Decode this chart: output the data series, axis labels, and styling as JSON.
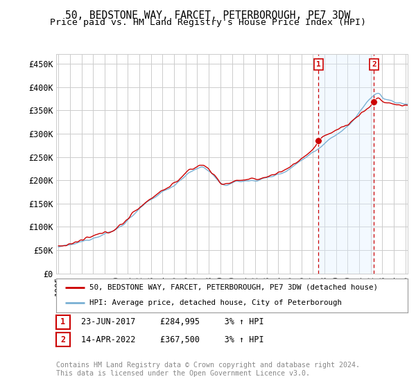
{
  "title": "50, BEDSTONE WAY, FARCET, PETERBOROUGH, PE7 3DW",
  "subtitle": "Price paid vs. HM Land Registry's House Price Index (HPI)",
  "ylabel_ticks": [
    "£0",
    "£50K",
    "£100K",
    "£150K",
    "£200K",
    "£250K",
    "£300K",
    "£350K",
    "£400K",
    "£450K"
  ],
  "ytick_values": [
    0,
    50000,
    100000,
    150000,
    200000,
    250000,
    300000,
    350000,
    400000,
    450000
  ],
  "ylim": [
    0,
    470000
  ],
  "xlim_start": 1994.8,
  "xlim_end": 2025.2,
  "red_color": "#cc0000",
  "blue_color": "#7ab0d4",
  "shade_color": "#ddeeff",
  "dashed_color": "#cc0000",
  "marker1_x": 2017.48,
  "marker1_y": 284995,
  "marker2_x": 2022.28,
  "marker2_y": 367500,
  "legend_label1": "50, BEDSTONE WAY, FARCET, PETERBOROUGH, PE7 3DW (detached house)",
  "legend_label2": "HPI: Average price, detached house, City of Peterborough",
  "table_row1": [
    "1",
    "23-JUN-2017",
    "£284,995",
    "3% ↑ HPI"
  ],
  "table_row2": [
    "2",
    "14-APR-2022",
    "£367,500",
    "3% ↑ HPI"
  ],
  "footer": "Contains HM Land Registry data © Crown copyright and database right 2024.\nThis data is licensed under the Open Government Licence v3.0.",
  "bg_color": "#ffffff",
  "plot_bg_color": "#ffffff",
  "grid_color": "#cccccc",
  "title_fontsize": 10.5,
  "subtitle_fontsize": 9.5,
  "tick_fontsize": 8.5
}
